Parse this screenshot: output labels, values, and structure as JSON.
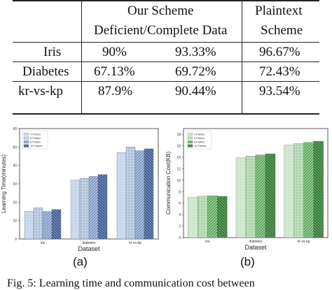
{
  "table": {
    "header": {
      "group_label": "Our Scheme",
      "sub_label": "Deficient/Complete Data",
      "plain_line1": "Plaintext",
      "plain_line2": "Scheme"
    },
    "rows": [
      {
        "name": "Iris",
        "deficient": "90%",
        "complete": "93.33%",
        "plaintext": "96.67%"
      },
      {
        "name": "Diabetes",
        "deficient": "67.13%",
        "complete": "69.72%",
        "plaintext": "72.43%"
      },
      {
        "name": "kr-vs-kp",
        "deficient": "87.9%",
        "complete": "90.44%",
        "plaintext": "93.54%"
      }
    ]
  },
  "chart_data": [
    {
      "type": "bar",
      "title": "",
      "xlabel": "Dataset",
      "ylabel": "Learning Time(minutes)",
      "categories": [
        "iris",
        "diabetes",
        "kr-vs-kp"
      ],
      "ylim": [
        0,
        60
      ],
      "yticks": [
        0,
        10,
        20,
        30,
        40,
        50,
        60
      ],
      "legend_position": "top-left",
      "series": [
        {
          "name": "4 Parties",
          "values": [
            15,
            32,
            47
          ],
          "color": "#c7d6ea"
        },
        {
          "name": "6 Parties",
          "values": [
            17,
            33,
            50
          ],
          "color": "#a9bddb"
        },
        {
          "name": "8 Parties",
          "values": [
            15,
            34,
            48
          ],
          "color": "#7f9bc6"
        },
        {
          "name": "10 Parties",
          "values": [
            16,
            35,
            49
          ],
          "color": "#3e5c95"
        }
      ]
    },
    {
      "type": "bar",
      "title": "",
      "xlabel": "Dataset",
      "ylabel": "Communication Cost(KB)",
      "categories": [
        "iris",
        "diabetes",
        "kr-vs-kp"
      ],
      "ylim": [
        0,
        19
      ],
      "yticks": [
        0,
        2,
        4,
        6,
        8,
        10,
        12,
        14,
        16,
        18
      ],
      "legend_position": "top-left",
      "series": [
        {
          "name": "4 Parties",
          "values": [
            7.0,
            13.9,
            16.1
          ],
          "color": "#cfe5cf"
        },
        {
          "name": "6 Parties",
          "values": [
            7.2,
            14.2,
            16.4
          ],
          "color": "#a6d1a6"
        },
        {
          "name": "8 Parties",
          "values": [
            7.3,
            14.4,
            16.6
          ],
          "color": "#5ea85e"
        },
        {
          "name": "10 Parties",
          "values": [
            7.2,
            14.6,
            16.8
          ],
          "color": "#2f7a2f"
        }
      ]
    }
  ],
  "captions": {
    "a": "(a)",
    "b": "(b)"
  },
  "figure_caption": "Fig. 5: Learning time and communication cost between"
}
